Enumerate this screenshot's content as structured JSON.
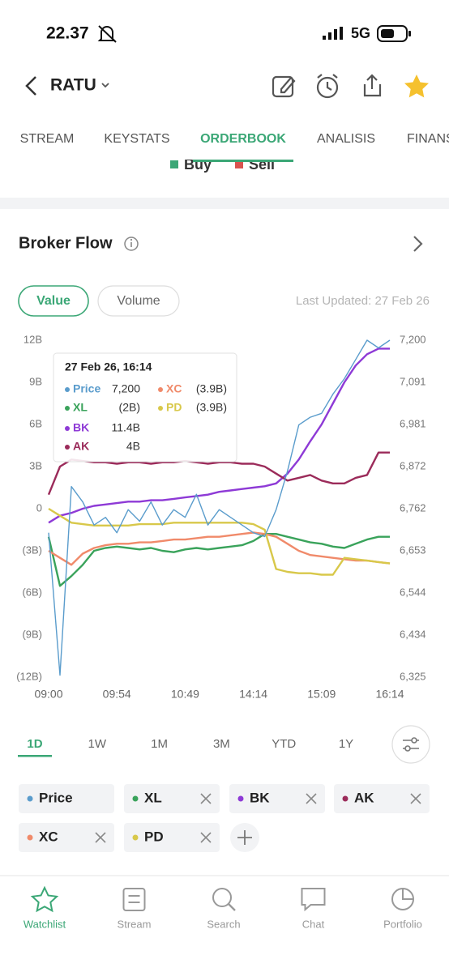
{
  "status_bar": {
    "time": "22.37",
    "network": "5G"
  },
  "header": {
    "ticker": "RATU"
  },
  "tabs": [
    "STREAM",
    "KEYSTATS",
    "ORDERBOOK",
    "ANALISIS",
    "FINANS"
  ],
  "active_tab": "ORDERBOOK",
  "orderbook_legend": [
    "Buy",
    "Sell"
  ],
  "section_title": "Broker Flow",
  "toggles": [
    "Value",
    "Volume"
  ],
  "active_toggle": "Value",
  "last_updated": "Last Updated: 27 Feb 26",
  "tooltip_title": "27 Feb 26, 16:14",
  "chart_data": {
    "type": "line",
    "x": [
      0,
      2,
      4,
      6,
      8,
      10,
      12,
      14,
      16,
      18,
      20,
      22,
      24,
      26,
      28,
      30,
      32,
      34,
      36,
      38,
      40,
      42,
      44,
      46,
      48,
      50,
      52,
      54,
      56,
      58,
      60
    ],
    "xlim": [
      0,
      60
    ],
    "xticks": [
      {
        "value": 0,
        "label": "09:00"
      },
      {
        "value": 12,
        "label": "09:54"
      },
      {
        "value": 24,
        "label": "10:49"
      },
      {
        "value": 36,
        "label": "14:14"
      },
      {
        "value": 48,
        "label": "15:09"
      },
      {
        "value": 60,
        "label": "16:14"
      }
    ],
    "ylim": [
      -12,
      12
    ],
    "yticks": [
      {
        "value": 12,
        "label": "12B"
      },
      {
        "value": 9,
        "label": "9B"
      },
      {
        "value": 6,
        "label": "6B"
      },
      {
        "value": 3,
        "label": "3B"
      },
      0,
      {
        "value": -3,
        "label": "(3B)"
      },
      {
        "value": -6,
        "label": "(6B)"
      },
      {
        "value": -9,
        "label": "(9B)"
      },
      {
        "value": -12,
        "label": "(12B)"
      }
    ],
    "y2lim": [
      6325,
      7200
    ],
    "y2ticks": [
      {
        "value": 7200,
        "label": "7,200"
      },
      {
        "value": 7091,
        "label": "7,091"
      },
      {
        "value": 6981,
        "label": "6,981"
      },
      {
        "value": 6872,
        "label": "6,872"
      },
      {
        "value": 6762,
        "label": "6,762"
      },
      {
        "value": 6653,
        "label": "6,653"
      },
      {
        "value": 6544,
        "label": "6,544"
      },
      {
        "value": 6434,
        "label": "6,434"
      },
      {
        "value": 6325,
        "label": "6,325"
      }
    ],
    "series": [
      {
        "name": "Price",
        "color": "#5a9ccc",
        "axis": "y2",
        "tooltip_label": "7,200",
        "values": [
          6700,
          6330,
          6820,
          6780,
          6720,
          6740,
          6700,
          6760,
          6730,
          6780,
          6720,
          6760,
          6740,
          6800,
          6720,
          6760,
          6740,
          6720,
          6700,
          6690,
          6760,
          6860,
          6980,
          7000,
          7010,
          7060,
          7100,
          7150,
          7200,
          7180,
          7200
        ]
      },
      {
        "name": "XL",
        "color": "#3aa35b",
        "tooltip_label": "(2B)",
        "values": [
          -2,
          -5.5,
          -4.8,
          -4,
          -3,
          -2.8,
          -2.7,
          -2.8,
          -2.9,
          -2.8,
          -3,
          -3.1,
          -2.9,
          -2.8,
          -2.9,
          -2.8,
          -2.7,
          -2.6,
          -2.3,
          -1.8,
          -1.8,
          -2,
          -2.2,
          -2.4,
          -2.5,
          -2.7,
          -2.8,
          -2.5,
          -2.2,
          -2,
          -2
        ]
      },
      {
        "name": "BK",
        "color": "#8e3ad6",
        "tooltip_label": "11.4B",
        "values": [
          -1,
          -0.5,
          -0.3,
          0,
          0.2,
          0.3,
          0.4,
          0.5,
          0.5,
          0.6,
          0.6,
          0.7,
          0.8,
          0.9,
          1,
          1.2,
          1.3,
          1.4,
          1.5,
          1.6,
          1.8,
          2.5,
          3.5,
          4.8,
          6,
          7.5,
          9,
          10.2,
          11,
          11.4,
          11.4
        ]
      },
      {
        "name": "AK",
        "color": "#9b2b5a",
        "tooltip_label": "4B",
        "values": [
          1,
          3,
          3.5,
          3.4,
          3.3,
          3.3,
          3.2,
          3.3,
          3.3,
          3.2,
          3.3,
          3.3,
          3.4,
          3.3,
          3.2,
          3.3,
          3.3,
          3.2,
          3.2,
          3,
          2.5,
          2,
          2.2,
          2.4,
          2,
          1.8,
          1.8,
          2.2,
          2.4,
          4,
          4
        ]
      },
      {
        "name": "XC",
        "color": "#f08a6a",
        "tooltip_label": "(3.9B)",
        "values": [
          -3,
          -3.5,
          -4,
          -3.2,
          -2.8,
          -2.6,
          -2.5,
          -2.5,
          -2.4,
          -2.4,
          -2.3,
          -2.2,
          -2.2,
          -2.1,
          -2,
          -2,
          -1.9,
          -1.8,
          -1.7,
          -1.8,
          -2,
          -2.5,
          -3,
          -3.3,
          -3.4,
          -3.5,
          -3.6,
          -3.7,
          -3.7,
          -3.8,
          -3.9
        ]
      },
      {
        "name": "PD",
        "color": "#d8c84a",
        "tooltip_label": "(3.9B)",
        "values": [
          0,
          -0.5,
          -1,
          -1.1,
          -1.2,
          -1.2,
          -1.2,
          -1.2,
          -1.1,
          -1.1,
          -1.1,
          -1,
          -1,
          -1,
          -1,
          -1,
          -1,
          -1,
          -1.1,
          -1.5,
          -4.3,
          -4.5,
          -4.6,
          -4.6,
          -4.7,
          -4.7,
          -3.5,
          -3.6,
          -3.7,
          -3.8,
          -3.9
        ]
      }
    ]
  },
  "periods": [
    "1D",
    "1W",
    "1M",
    "3M",
    "YTD",
    "1Y"
  ],
  "active_period": "1D",
  "nav": [
    "Watchlist",
    "Stream",
    "Search",
    "Chat",
    "Portfolio"
  ],
  "active_nav": "Watchlist"
}
